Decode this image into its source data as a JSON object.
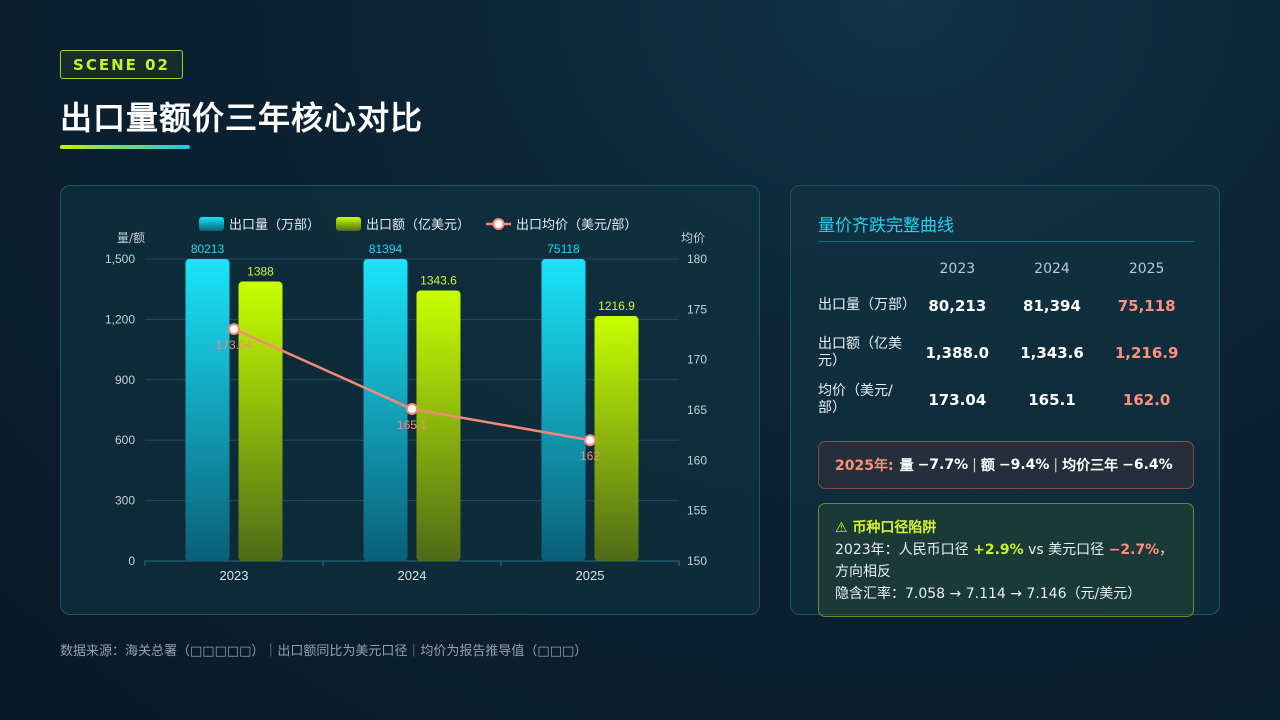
{
  "scene_tag": "SCENE 02",
  "page_title": "出口量额价三年核心对比",
  "chart_data": {
    "type": "bar",
    "categories": [
      "2023",
      "2024",
      "2025"
    ],
    "series": [
      {
        "name": "出口量（万部）",
        "type": "bar",
        "axis": "left",
        "values": [
          80213,
          81394,
          75118
        ],
        "labels": [
          "80213",
          "81394",
          "75118"
        ],
        "color": "#1ad8f2"
      },
      {
        "name": "出口额（亿美元）",
        "type": "bar",
        "axis": "left",
        "values": [
          1388,
          1343.6,
          1216.9
        ],
        "labels": [
          "1388",
          "1343.6",
          "1216.9"
        ],
        "color": "#c6f500"
      },
      {
        "name": "出口均价（美元/部）",
        "type": "line",
        "axis": "right",
        "values": [
          173.04,
          165.1,
          162
        ],
        "labels": [
          "173.04",
          "165.1",
          "162"
        ],
        "color": "#f58a7a"
      }
    ],
    "y_left": {
      "label": "量/额",
      "ylim": [
        0,
        1500
      ],
      "ticks": [
        "0",
        "300",
        "600",
        "900",
        "1,200",
        "1,500"
      ]
    },
    "y_right": {
      "label": "均价",
      "ylim": [
        150,
        180
      ],
      "ticks": [
        "150",
        "155",
        "160",
        "165",
        "170",
        "175",
        "180"
      ]
    },
    "legend_position": "top",
    "grid": true
  },
  "right_panel": {
    "title": "量价齐跌完整曲线",
    "table": {
      "headers": [
        "",
        "2023",
        "2024",
        "2025"
      ],
      "rows": [
        {
          "label": "出口量（万部）",
          "values": [
            "80,213",
            "81,394",
            "75,118"
          ]
        },
        {
          "label": "出口额（亿美元）",
          "values": [
            "1,388.0",
            "1,343.6",
            "1,216.9"
          ]
        },
        {
          "label": "均价（美元/部）",
          "values": [
            "173.04",
            "165.1",
            "162.0"
          ]
        }
      ]
    },
    "summary": {
      "year": "2025年:",
      "vol_label": "量",
      "vol_pct": "−7.7%",
      "amt_label": "额",
      "amt_pct": "−9.4%",
      "price_label": "均价三年",
      "price_pct": "−6.4%"
    },
    "trap": {
      "icon": "warning-icon",
      "title": "币种口径陷阱",
      "line1_prefix": "2023年：人民币口径",
      "rmb_pct": "+2.9%",
      "line1_mid": "vs 美元口径",
      "usd_pct": "−2.7%",
      "line1_suffix": "，方向相反",
      "line2": "隐含汇率：7.058 → 7.114 → 7.146（元/美元）"
    },
    "colors": {
      "accent": "#22d3ee",
      "negative": "#ff8f7a",
      "positive": "#c8f227"
    }
  },
  "footer": "数据来源：海关总署（□□□□□）｜出口额同比为美元口径｜均价为报告推导值（□□□）"
}
